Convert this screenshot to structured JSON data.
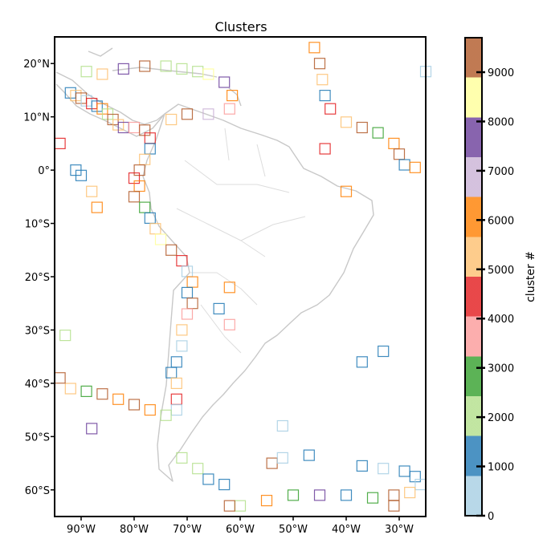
{
  "chart_data": {
    "type": "scatter",
    "title": "Clusters",
    "xlabel": "",
    "ylabel": "",
    "projection": "map",
    "xlim": [
      -95,
      -25
    ],
    "ylim": [
      -65,
      25
    ],
    "x_ticks": [
      {
        "value": -90,
        "label": "90°W"
      },
      {
        "value": -80,
        "label": "80°W"
      },
      {
        "value": -70,
        "label": "70°W"
      },
      {
        "value": -60,
        "label": "60°W"
      },
      {
        "value": -50,
        "label": "50°W"
      },
      {
        "value": -40,
        "label": "40°W"
      },
      {
        "value": -30,
        "label": "30°W"
      }
    ],
    "y_ticks": [
      {
        "value": 20,
        "label": "20°N"
      },
      {
        "value": 10,
        "label": "10°N"
      },
      {
        "value": 0,
        "label": "0°"
      },
      {
        "value": -10,
        "label": "10°S"
      },
      {
        "value": -20,
        "label": "20°S"
      },
      {
        "value": -30,
        "label": "30°S"
      },
      {
        "value": -40,
        "label": "40°S"
      },
      {
        "value": -50,
        "label": "50°S"
      },
      {
        "value": -60,
        "label": "60°S"
      }
    ],
    "marker": "square-open",
    "colorbar": {
      "label": "cluster #",
      "range": [
        0,
        9700
      ],
      "ticks": [
        {
          "value": 0,
          "label": "0"
        },
        {
          "value": 1000,
          "label": "1000"
        },
        {
          "value": 2000,
          "label": "2000"
        },
        {
          "value": 3000,
          "label": "3000"
        },
        {
          "value": 4000,
          "label": "4000"
        },
        {
          "value": 5000,
          "label": "5000"
        },
        {
          "value": 6000,
          "label": "6000"
        },
        {
          "value": 7000,
          "label": "7000"
        },
        {
          "value": 8000,
          "label": "8000"
        },
        {
          "value": 9000,
          "label": "9000"
        }
      ],
      "colormap": [
        "#a6cee3",
        "#1f78b4",
        "#b2df8a",
        "#33a02c",
        "#fb9a99",
        "#e31a1c",
        "#fdbf6f",
        "#ff7f00",
        "#cab2d6",
        "#6a3d9a",
        "#ffff99",
        "#b15928"
      ]
    },
    "points": [
      {
        "lon": -92,
        "lat": 14.5,
        "cluster": 1200
      },
      {
        "lon": -91,
        "lat": 14,
        "cluster": 5200
      },
      {
        "lon": -90,
        "lat": 13.5,
        "cluster": 9500
      },
      {
        "lon": -89,
        "lat": 13,
        "cluster": 800
      },
      {
        "lon": -88,
        "lat": 12.5,
        "cluster": 4300
      },
      {
        "lon": -87,
        "lat": 12,
        "cluster": 1000
      },
      {
        "lon": -86,
        "lat": 11.5,
        "cluster": 6100
      },
      {
        "lon": -85,
        "lat": 10.5,
        "cluster": 2100
      },
      {
        "lon": -84,
        "lat": 9.5,
        "cluster": 9200
      },
      {
        "lon": -83,
        "lat": 8.5,
        "cluster": 5600
      },
      {
        "lon": -82,
        "lat": 8,
        "cluster": 7300
      },
      {
        "lon": -80,
        "lat": 8,
        "cluster": 3400
      },
      {
        "lon": -78,
        "lat": 7.5,
        "cluster": 9600
      },
      {
        "lon": -77,
        "lat": 6,
        "cluster": 4800
      },
      {
        "lon": -77,
        "lat": 4,
        "cluster": 1500
      },
      {
        "lon": -78,
        "lat": 2,
        "cluster": 5100
      },
      {
        "lon": -79,
        "lat": 0,
        "cluster": 9400
      },
      {
        "lon": -80,
        "lat": -1.5,
        "cluster": 4600
      },
      {
        "lon": -79,
        "lat": -3,
        "cluster": 5800
      },
      {
        "lon": -80,
        "lat": -5,
        "cluster": 9300
      },
      {
        "lon": -78,
        "lat": -7,
        "cluster": 2600
      },
      {
        "lon": -77,
        "lat": -9,
        "cluster": 1100
      },
      {
        "lon": -76,
        "lat": -11,
        "cluster": 5000
      },
      {
        "lon": -75,
        "lat": -13,
        "cluster": 8400
      },
      {
        "lon": -73,
        "lat": -15,
        "cluster": 9100
      },
      {
        "lon": -71,
        "lat": -17,
        "cluster": 4500
      },
      {
        "lon": -70,
        "lat": -19,
        "cluster": 700
      },
      {
        "lon": -69,
        "lat": -21,
        "cluster": 6300
      },
      {
        "lon": -70,
        "lat": -23,
        "cluster": 1300
      },
      {
        "lon": -69,
        "lat": -25,
        "cluster": 9800
      },
      {
        "lon": -70,
        "lat": -27,
        "cluster": 3600
      },
      {
        "lon": -71,
        "lat": -30,
        "cluster": 5400
      },
      {
        "lon": -71,
        "lat": -33,
        "cluster": 400
      },
      {
        "lon": -72,
        "lat": -36,
        "cluster": 1000
      },
      {
        "lon": -73,
        "lat": -38,
        "cluster": 900
      },
      {
        "lon": -72,
        "lat": -40,
        "cluster": 4900
      },
      {
        "lon": -72,
        "lat": -43,
        "cluster": 4200
      },
      {
        "lon": -72,
        "lat": -45,
        "cluster": 800
      },
      {
        "lon": -74,
        "lat": -46,
        "cluster": 2200
      },
      {
        "lon": -77,
        "lat": -45,
        "cluster": 5800
      },
      {
        "lon": -80,
        "lat": -44,
        "cluster": 9300
      },
      {
        "lon": -83,
        "lat": -43,
        "cluster": 6200
      },
      {
        "lon": -86,
        "lat": -42,
        "cluster": 9500
      },
      {
        "lon": -89,
        "lat": -41.5,
        "cluster": 2700
      },
      {
        "lon": -92,
        "lat": -41,
        "cluster": 5500
      },
      {
        "lon": -94,
        "lat": -39,
        "cluster": 9700
      },
      {
        "lon": -89,
        "lat": 18.5,
        "cluster": 1900
      },
      {
        "lon": -86,
        "lat": 18,
        "cluster": 5300
      },
      {
        "lon": -82,
        "lat": 19,
        "cluster": 7500
      },
      {
        "lon": -78,
        "lat": 19.5,
        "cluster": 9000
      },
      {
        "lon": -74,
        "lat": 19.5,
        "cluster": 2200
      },
      {
        "lon": -71,
        "lat": 19,
        "cluster": 1800
      },
      {
        "lon": -68,
        "lat": 18.5,
        "cluster": 2400
      },
      {
        "lon": -66,
        "lat": 18,
        "cluster": 8200
      },
      {
        "lon": -63,
        "lat": 16.5,
        "cluster": 7600
      },
      {
        "lon": -61.5,
        "lat": 14,
        "cluster": 5700
      },
      {
        "lon": -62,
        "lat": 11.5,
        "cluster": 3900
      },
      {
        "lon": -66,
        "lat": 10.5,
        "cluster": 6800
      },
      {
        "lon": -70,
        "lat": 10.5,
        "cluster": 9400
      },
      {
        "lon": -73,
        "lat": 9.5,
        "cluster": 5000
      },
      {
        "lon": -46,
        "lat": 23,
        "cluster": 6000
      },
      {
        "lon": -45,
        "lat": 20,
        "cluster": 9300
      },
      {
        "lon": -44.5,
        "lat": 17,
        "cluster": 5100
      },
      {
        "lon": -44,
        "lat": 14,
        "cluster": 1300
      },
      {
        "lon": -43,
        "lat": 11.5,
        "cluster": 4700
      },
      {
        "lon": -40,
        "lat": 9,
        "cluster": 5600
      },
      {
        "lon": -37,
        "lat": 8,
        "cluster": 9100
      },
      {
        "lon": -34,
        "lat": 7,
        "cluster": 2800
      },
      {
        "lon": -31,
        "lat": 5,
        "cluster": 6000
      },
      {
        "lon": -30,
        "lat": 3,
        "cluster": 9600
      },
      {
        "lon": -29,
        "lat": 1,
        "cluster": 1600
      },
      {
        "lon": -27,
        "lat": 0.5,
        "cluster": 5900
      },
      {
        "lon": -33,
        "lat": -56,
        "cluster": 800
      },
      {
        "lon": -29,
        "lat": -56.5,
        "cluster": 1000
      },
      {
        "lon": -27,
        "lat": -57.5,
        "cluster": 1200
      },
      {
        "lon": -26,
        "lat": -59,
        "cluster": 700
      },
      {
        "lon": -28,
        "lat": -60.5,
        "cluster": 5300
      },
      {
        "lon": -31,
        "lat": -61,
        "cluster": 9200
      },
      {
        "lon": -35,
        "lat": -61.5,
        "cluster": 2500
      },
      {
        "lon": -40,
        "lat": -61,
        "cluster": 1100
      },
      {
        "lon": -45,
        "lat": -61,
        "cluster": 8000
      },
      {
        "lon": -50,
        "lat": -61,
        "cluster": 3000
      },
      {
        "lon": -55,
        "lat": -62,
        "cluster": 6400
      },
      {
        "lon": -60,
        "lat": -63,
        "cluster": 1900
      },
      {
        "lon": -62,
        "lat": -63,
        "cluster": 9700
      },
      {
        "lon": -54,
        "lat": -55,
        "cluster": 9500
      },
      {
        "lon": -52,
        "lat": -54,
        "cluster": 600
      },
      {
        "lon": -47,
        "lat": -53.5,
        "cluster": 1300
      },
      {
        "lon": -37,
        "lat": -55.5,
        "cluster": 900
      },
      {
        "lon": -68,
        "lat": -56,
        "cluster": 2000
      },
      {
        "lon": -71,
        "lat": -54,
        "cluster": 2100
      },
      {
        "lon": -66,
        "lat": -58,
        "cluster": 900
      },
      {
        "lon": -63,
        "lat": -59,
        "cluster": 1200
      },
      {
        "lon": -52,
        "lat": -48,
        "cluster": 700
      },
      {
        "lon": -37,
        "lat": -36,
        "cluster": 1300
      },
      {
        "lon": -33,
        "lat": -34,
        "cluster": 900
      },
      {
        "lon": -31,
        "lat": -63,
        "cluster": 9600
      },
      {
        "lon": -88,
        "lat": -48.5,
        "cluster": 8000
      },
      {
        "lon": -93,
        "lat": -31,
        "cluster": 2200
      },
      {
        "lon": -94,
        "lat": 5,
        "cluster": 4600
      },
      {
        "lon": -91,
        "lat": 0,
        "cluster": 1100
      },
      {
        "lon": -90,
        "lat": -1,
        "cluster": 900
      },
      {
        "lon": -88,
        "lat": -4,
        "cluster": 5600
      },
      {
        "lon": -87,
        "lat": -7,
        "cluster": 5900
      },
      {
        "lon": -25,
        "lat": 18.5,
        "cluster": 800
      },
      {
        "lon": -40,
        "lat": -4,
        "cluster": 5800
      },
      {
        "lon": -44,
        "lat": 4,
        "cluster": 4600
      },
      {
        "lon": -62,
        "lat": -22,
        "cluster": 6000
      },
      {
        "lon": -64,
        "lat": -26,
        "cluster": 1000
      },
      {
        "lon": -62,
        "lat": -29,
        "cluster": 3500
      }
    ]
  }
}
